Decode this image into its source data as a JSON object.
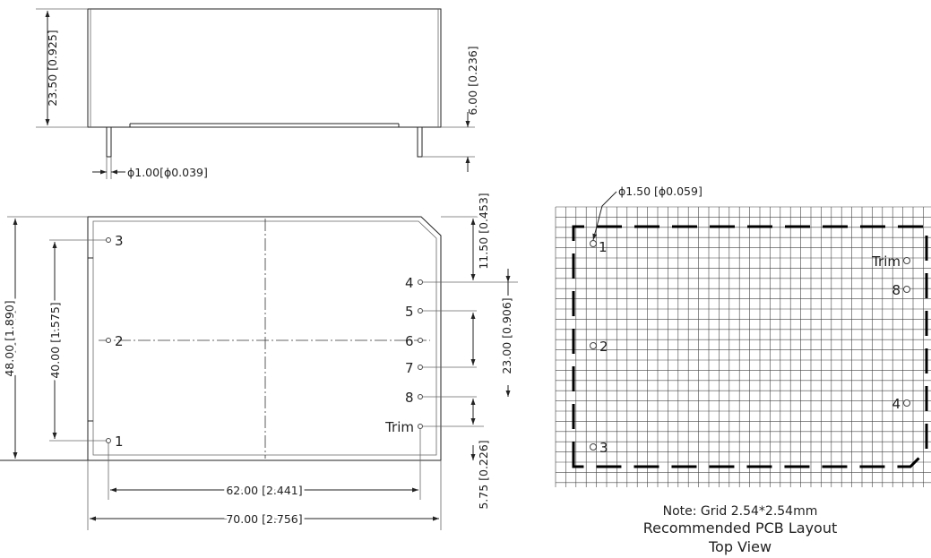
{
  "side_view": {
    "height_dim": "23.50 [0.925]",
    "pin_length_dim": "6.00 [0.236]",
    "pin_diameter_dim": "ϕ1.00[ϕ0.039]"
  },
  "front_view": {
    "width_outer_dim": "70.00 [2.756]",
    "width_pins_dim": "62.00 [2.441]",
    "height_outer_dim": "48.00 [1.890]",
    "height_pins_dim": "40.00 [1.575]",
    "top_offset_dim": "11.50 [0.453]",
    "right_pins_span_dim": "23.00 [0.906]",
    "bottom_offset_dim": "5.75 [0.226]",
    "pins": {
      "p1": "1",
      "p2": "2",
      "p3": "3",
      "p4": "4",
      "p5": "5",
      "p6": "6",
      "p7": "7",
      "p8": "8",
      "trim": "Trim"
    }
  },
  "pcb_layout": {
    "hole_dim": "ϕ1.50 [ϕ0.059]",
    "pins": {
      "p1": "1",
      "p2": "2",
      "p3": "3",
      "p4": "4",
      "p8": "8",
      "trim": "Trim"
    },
    "note": "Note: Grid 2.54*2.54mm",
    "title": "Recommended PCB Layout",
    "subtitle": "Top View"
  }
}
